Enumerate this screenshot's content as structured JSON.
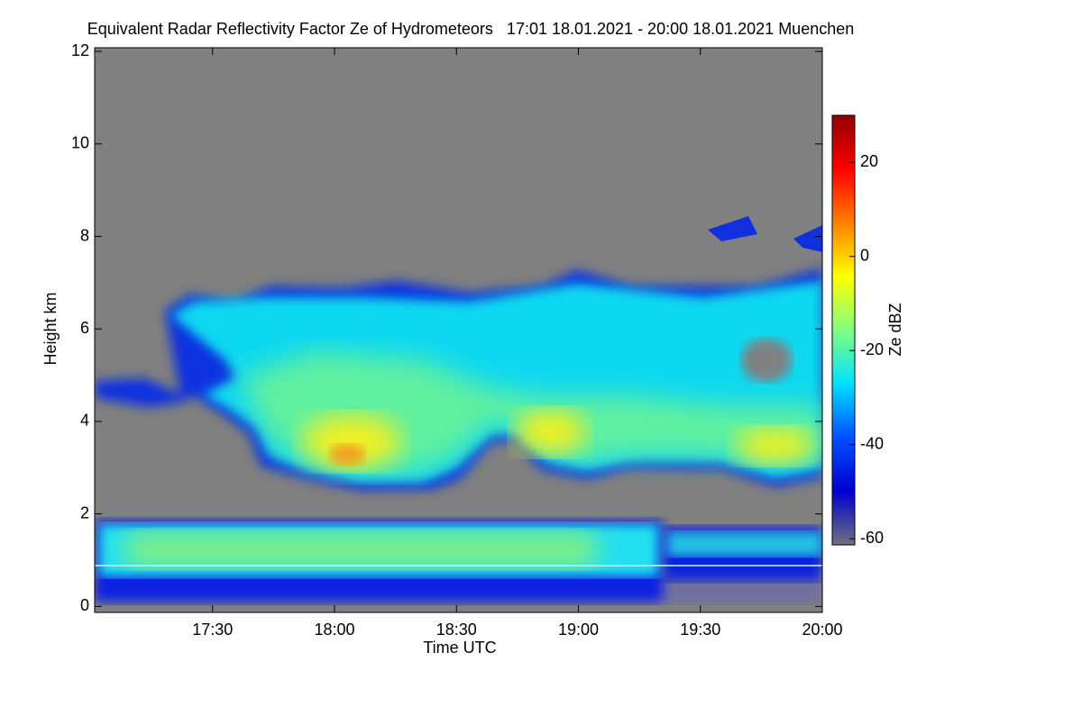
{
  "chart_data": {
    "type": "heatmap",
    "title": "Equivalent Radar Reflectivity Factor Ze of Hydrometeors   17:01 18.01.2021 - 20:00 18.01.2021 Muenchen",
    "x_label": "Time UTC",
    "y_label": "Height km",
    "colorbar_label": "Ze dBZ",
    "xlim": [
      17.0167,
      20.0
    ],
    "xticks": [
      {
        "value": 17.5,
        "label": "17:30"
      },
      {
        "value": 18,
        "label": "18:00"
      },
      {
        "value": 18.5,
        "label": "18:30"
      },
      {
        "value": 19,
        "label": "19:00"
      },
      {
        "value": 19.5,
        "label": "19:30"
      },
      {
        "value": 20,
        "label": "20:00"
      }
    ],
    "ylim": [
      -0.13,
      12.08
    ],
    "yticks": [
      0,
      2,
      4,
      6,
      8,
      10,
      12
    ],
    "clim": [
      -61.3,
      30
    ],
    "cticks": [
      20,
      0,
      -20,
      -40,
      -60
    ],
    "colormap": [
      "#707080",
      "#0000d0",
      "#0050ff",
      "#00e0ff",
      "#80ff80",
      "#ffff00",
      "#ff8000",
      "#ff0000",
      "#900000"
    ],
    "background": "#808080"
  }
}
